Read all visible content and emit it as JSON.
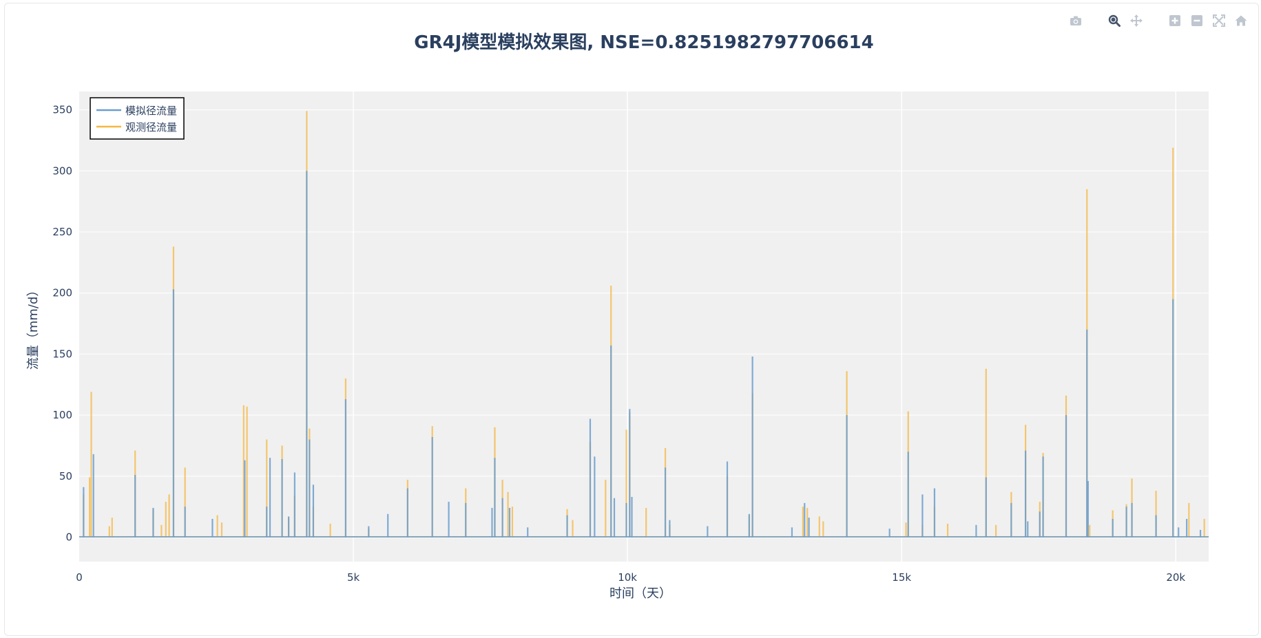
{
  "modebar": {
    "buttons": [
      "camera-icon",
      "zoom-icon",
      "pan-icon",
      "zoom-in-icon",
      "zoom-out-icon",
      "autoscale-icon",
      "home-icon"
    ]
  },
  "colors": {
    "plot_bg": "#f0f0f0",
    "grid": "#ffffff",
    "text": "#2a3f5f",
    "simulated": "#6a9ecf",
    "observed": "#f5b740"
  },
  "chart_data": {
    "type": "line",
    "title": "GR4J模型模拟效果图, NSE=0.8251982797706614",
    "xlabel": "时间（天）",
    "ylabel": "流量（mm/d）",
    "xlim": [
      0,
      20600
    ],
    "ylim": [
      -20,
      365
    ],
    "xticks": [
      0,
      5000,
      10000,
      15000,
      20000
    ],
    "xtick_labels": [
      "0",
      "5k",
      "10k",
      "15k",
      "20k"
    ],
    "yticks": [
      0,
      50,
      100,
      150,
      200,
      250,
      300,
      350
    ],
    "ytick_labels": [
      "0",
      "50",
      "100",
      "150",
      "200",
      "250",
      "300",
      "350"
    ],
    "grid": true,
    "legend_position": "top-left",
    "series": [
      {
        "name": "模拟径流量",
        "color": "#6a9ecf",
        "peaks": [
          [
            80,
            41
          ],
          [
            260,
            68
          ],
          [
            1020,
            51
          ],
          [
            1350,
            24
          ],
          [
            1720,
            203
          ],
          [
            1930,
            25
          ],
          [
            2430,
            15
          ],
          [
            3020,
            63
          ],
          [
            3420,
            25
          ],
          [
            3480,
            65
          ],
          [
            3700,
            64
          ],
          [
            3820,
            17
          ],
          [
            3930,
            53
          ],
          [
            4150,
            300
          ],
          [
            4200,
            80
          ],
          [
            4270,
            43
          ],
          [
            4860,
            113
          ],
          [
            5280,
            9
          ],
          [
            5630,
            19
          ],
          [
            5990,
            40
          ],
          [
            6440,
            82
          ],
          [
            6740,
            29
          ],
          [
            7050,
            28
          ],
          [
            7530,
            24
          ],
          [
            7580,
            65
          ],
          [
            7720,
            32
          ],
          [
            7850,
            24
          ],
          [
            8180,
            8
          ],
          [
            8900,
            18
          ],
          [
            9320,
            97
          ],
          [
            9400,
            66
          ],
          [
            9700,
            157
          ],
          [
            9760,
            32
          ],
          [
            9980,
            28
          ],
          [
            10040,
            105
          ],
          [
            10080,
            33
          ],
          [
            10690,
            57
          ],
          [
            10770,
            14
          ],
          [
            11460,
            9
          ],
          [
            11820,
            62
          ],
          [
            12220,
            19
          ],
          [
            12280,
            148
          ],
          [
            13000,
            8
          ],
          [
            13230,
            28
          ],
          [
            13310,
            16
          ],
          [
            14000,
            100
          ],
          [
            14780,
            7
          ],
          [
            15120,
            70
          ],
          [
            15380,
            35
          ],
          [
            15600,
            40
          ],
          [
            16360,
            10
          ],
          [
            16540,
            49
          ],
          [
            17000,
            28
          ],
          [
            17260,
            71
          ],
          [
            17300,
            13
          ],
          [
            17520,
            21
          ],
          [
            17580,
            66
          ],
          [
            18000,
            100
          ],
          [
            18380,
            170
          ],
          [
            18400,
            46
          ],
          [
            18850,
            15
          ],
          [
            19100,
            25
          ],
          [
            19200,
            28
          ],
          [
            19640,
            18
          ],
          [
            19950,
            195
          ],
          [
            20050,
            8
          ],
          [
            20200,
            15
          ],
          [
            20450,
            6
          ]
        ]
      },
      {
        "name": "观测径流量",
        "color": "#f5b740",
        "peaks": [
          [
            80,
            35
          ],
          [
            190,
            49
          ],
          [
            220,
            119
          ],
          [
            550,
            9
          ],
          [
            600,
            16
          ],
          [
            1020,
            71
          ],
          [
            1350,
            23
          ],
          [
            1500,
            10
          ],
          [
            1580,
            29
          ],
          [
            1640,
            35
          ],
          [
            1720,
            238
          ],
          [
            1930,
            57
          ],
          [
            2520,
            18
          ],
          [
            2600,
            12
          ],
          [
            3000,
            108
          ],
          [
            3060,
            107
          ],
          [
            3420,
            80
          ],
          [
            3700,
            75
          ],
          [
            3820,
            16
          ],
          [
            3930,
            34
          ],
          [
            4150,
            349
          ],
          [
            4200,
            89
          ],
          [
            4270,
            25
          ],
          [
            4580,
            11
          ],
          [
            4860,
            130
          ],
          [
            5280,
            7
          ],
          [
            5990,
            47
          ],
          [
            6440,
            91
          ],
          [
            7050,
            40
          ],
          [
            7580,
            90
          ],
          [
            7720,
            47
          ],
          [
            7820,
            37
          ],
          [
            7900,
            25
          ],
          [
            8900,
            23
          ],
          [
            9000,
            14
          ],
          [
            9320,
            78
          ],
          [
            9600,
            47
          ],
          [
            9700,
            206
          ],
          [
            9980,
            88
          ],
          [
            10040,
            102
          ],
          [
            10340,
            24
          ],
          [
            10690,
            73
          ],
          [
            10770,
            10
          ],
          [
            11820,
            50
          ],
          [
            12220,
            18
          ],
          [
            12280,
            118
          ],
          [
            13200,
            25
          ],
          [
            13280,
            24
          ],
          [
            13500,
            17
          ],
          [
            13570,
            13
          ],
          [
            14000,
            136
          ],
          [
            15080,
            12
          ],
          [
            15120,
            103
          ],
          [
            15380,
            10
          ],
          [
            15600,
            25
          ],
          [
            15840,
            11
          ],
          [
            16540,
            138
          ],
          [
            16720,
            10
          ],
          [
            17000,
            37
          ],
          [
            17260,
            92
          ],
          [
            17520,
            29
          ],
          [
            17580,
            69
          ],
          [
            18000,
            116
          ],
          [
            18380,
            285
          ],
          [
            18430,
            10
          ],
          [
            18850,
            22
          ],
          [
            19100,
            27
          ],
          [
            19200,
            48
          ],
          [
            19640,
            38
          ],
          [
            19950,
            319
          ],
          [
            20240,
            28
          ],
          [
            20520,
            15
          ]
        ]
      }
    ]
  }
}
